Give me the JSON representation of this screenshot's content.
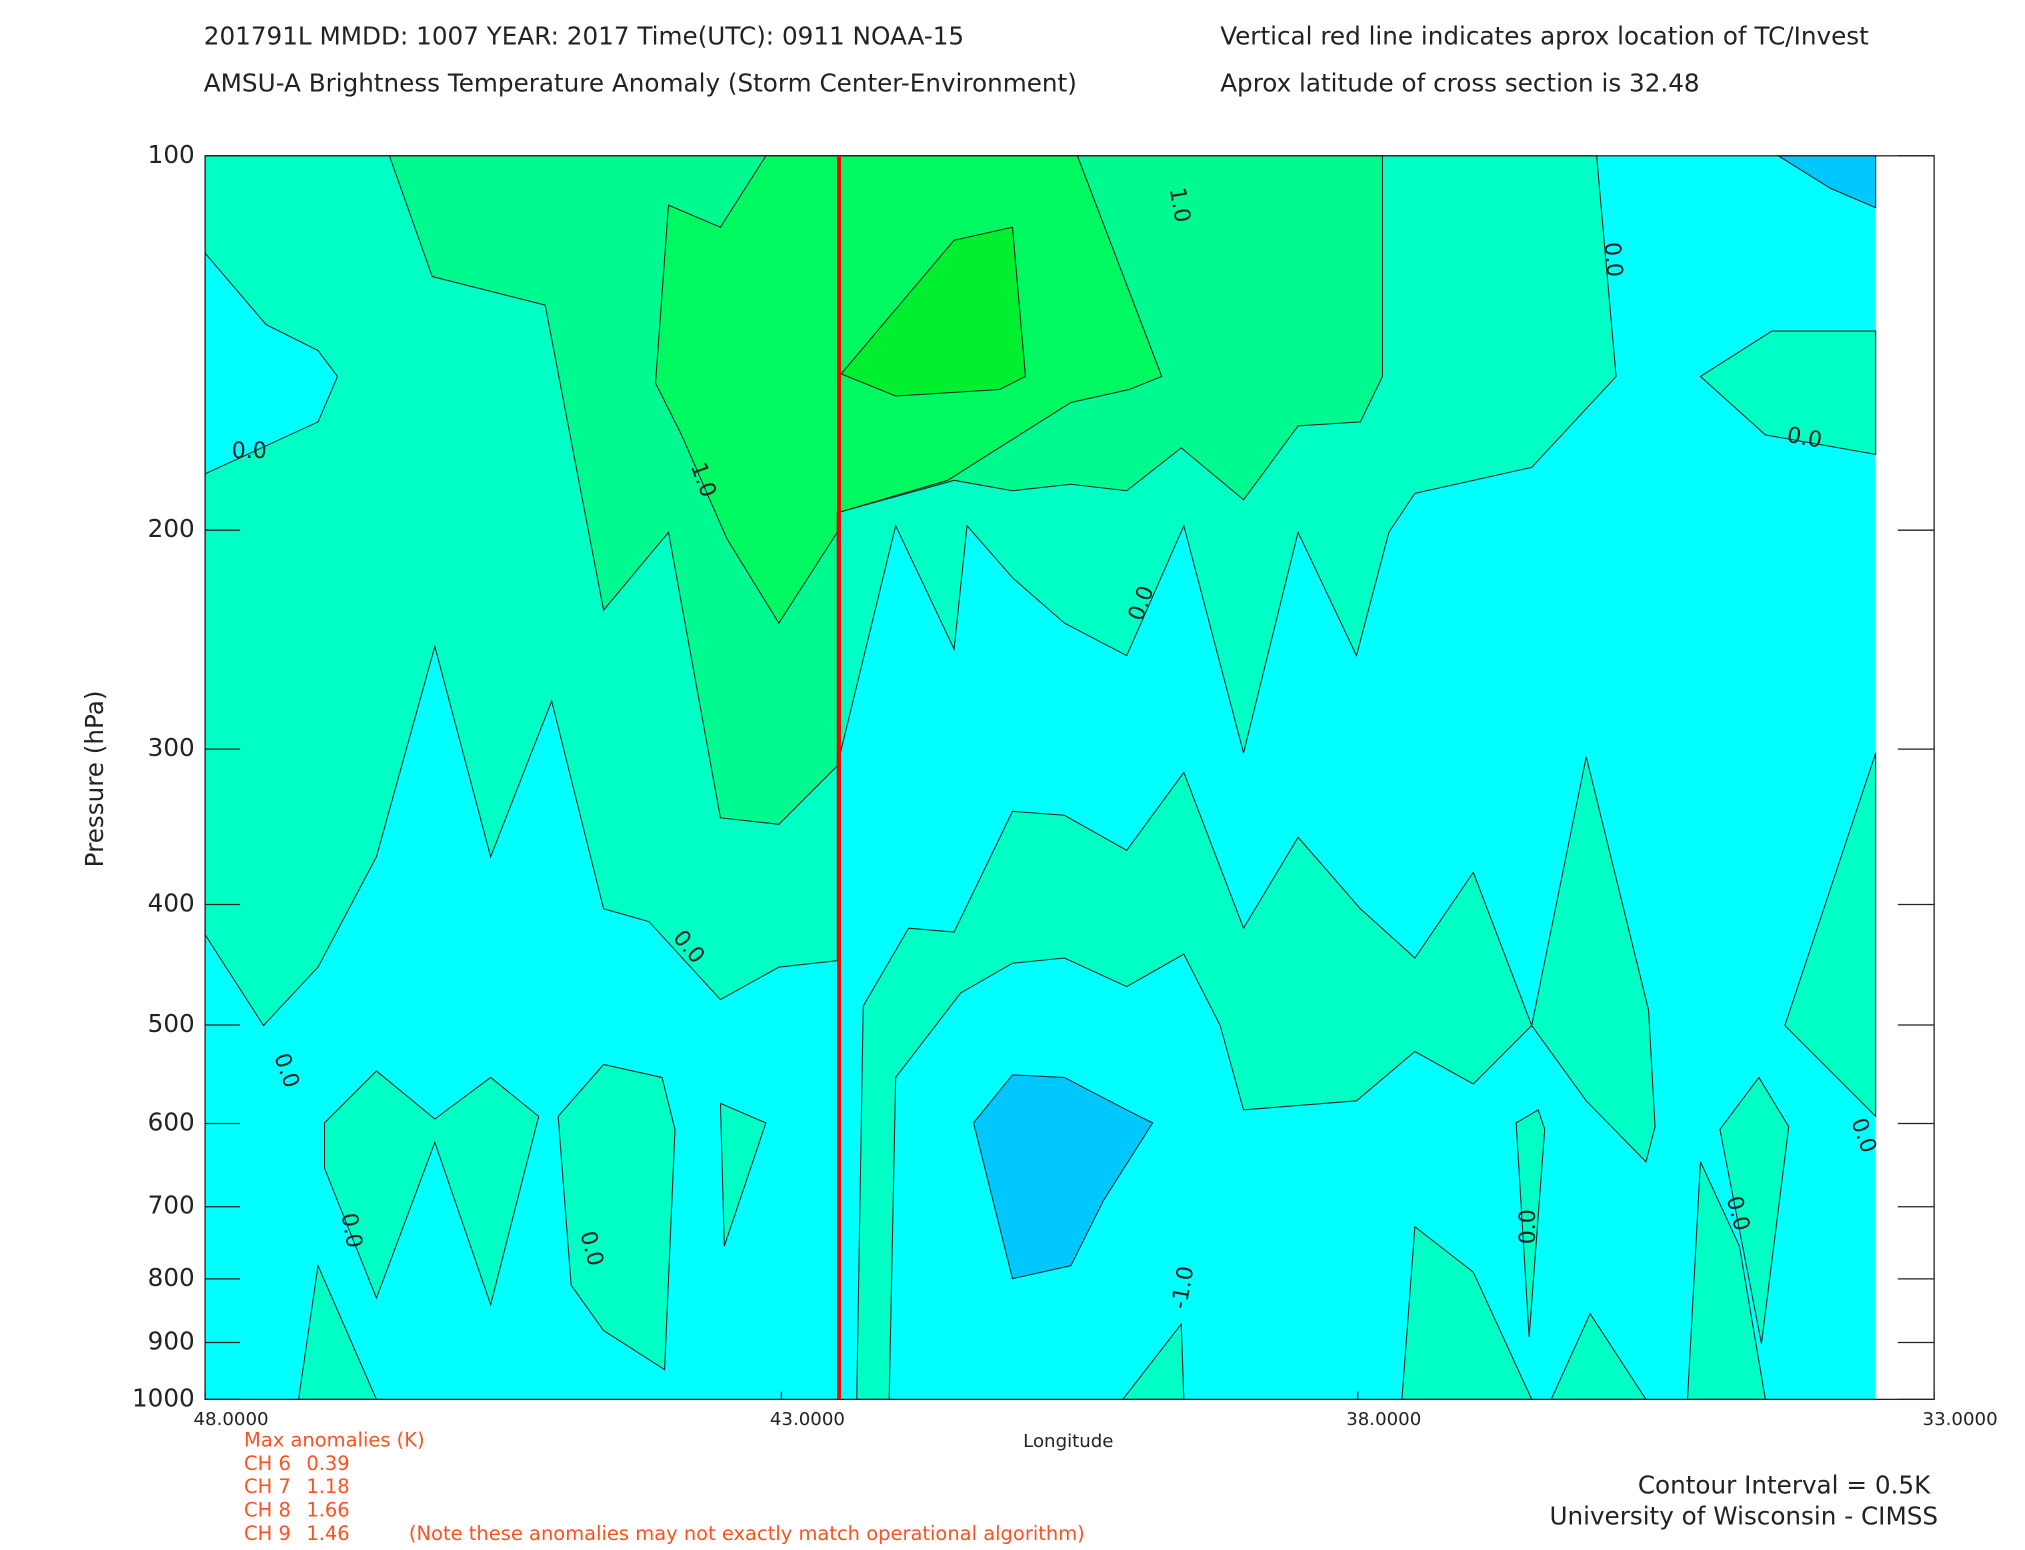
{
  "chart_data": {
    "type": "contour",
    "title_lines": [
      "201791L  MMDD: 1007 YEAR: 2017 Time(UTC): 0911 NOAA-15",
      "AMSU-A Brightness Temperature Anomaly (Storm Center-Environment)"
    ],
    "notes": [
      "Vertical red line indicates aprox location of TC/Invest",
      "Aprox latitude of cross section is 32.48"
    ],
    "xlabel": "Longitude",
    "ylabel": "Pressure (hPa)",
    "xlim": [
      48,
      33
    ],
    "xticks": [
      {
        "value": 48,
        "label": "48.0000"
      },
      {
        "value": 43,
        "label": "43.0000"
      },
      {
        "value": 38,
        "label": "38.0000"
      },
      {
        "value": 33,
        "label": "33.0000"
      }
    ],
    "ylim": [
      100,
      1000
    ],
    "log_y": true,
    "yticks": [
      100,
      200,
      300,
      400,
      500,
      600,
      700,
      800,
      900,
      1000
    ],
    "storm_longitude": 42.5,
    "storm_color": "#ff0000",
    "fills": [
      {
        "level": -1.0,
        "color": "#00c8ff"
      },
      {
        "level": -0.5,
        "color": "#00ffff"
      },
      {
        "level": 0.0,
        "color": "#00ffc4"
      },
      {
        "level": 0.5,
        "color": "#00fa90"
      },
      {
        "level": 1.0,
        "color": "#00f860"
      },
      {
        "level": 1.5,
        "color": "#00f030"
      }
    ],
    "contour_labels": [
      {
        "value": 0,
        "label": "0.0"
      },
      {
        "value": 1,
        "label": "1.0"
      },
      {
        "value": 1,
        "label": "1.0"
      },
      {
        "value": 0,
        "label": "0.0"
      },
      {
        "value": 0,
        "label": "0.0"
      },
      {
        "value": 0,
        "label": "0.0"
      },
      {
        "value": 0,
        "label": "0.0"
      },
      {
        "value": 0,
        "label": "0.0"
      },
      {
        "value": 0,
        "label": "0.0"
      },
      {
        "value": 0,
        "label": "0.0"
      },
      {
        "value": -1,
        "label": "-1.0"
      },
      {
        "value": 0,
        "label": "0.0"
      },
      {
        "value": 0,
        "label": "0.0"
      },
      {
        "value": 0,
        "label": "0.0"
      }
    ],
    "max_anomalies_title": "Max anomalies (K)",
    "max_anomalies": [
      {
        "channel": "CH 6",
        "value": 0.39
      },
      {
        "channel": "CH 7",
        "value": 1.18
      },
      {
        "channel": "CH 8",
        "value": 1.66
      },
      {
        "channel": "CH 9",
        "value": 1.46
      }
    ],
    "anomaly_note": "(Note these anomalies may not exactly match operational algorithm)",
    "contour_interval": "Contour Interval = 0.5K",
    "credit": "University of Wisconsin - CIMSS"
  }
}
